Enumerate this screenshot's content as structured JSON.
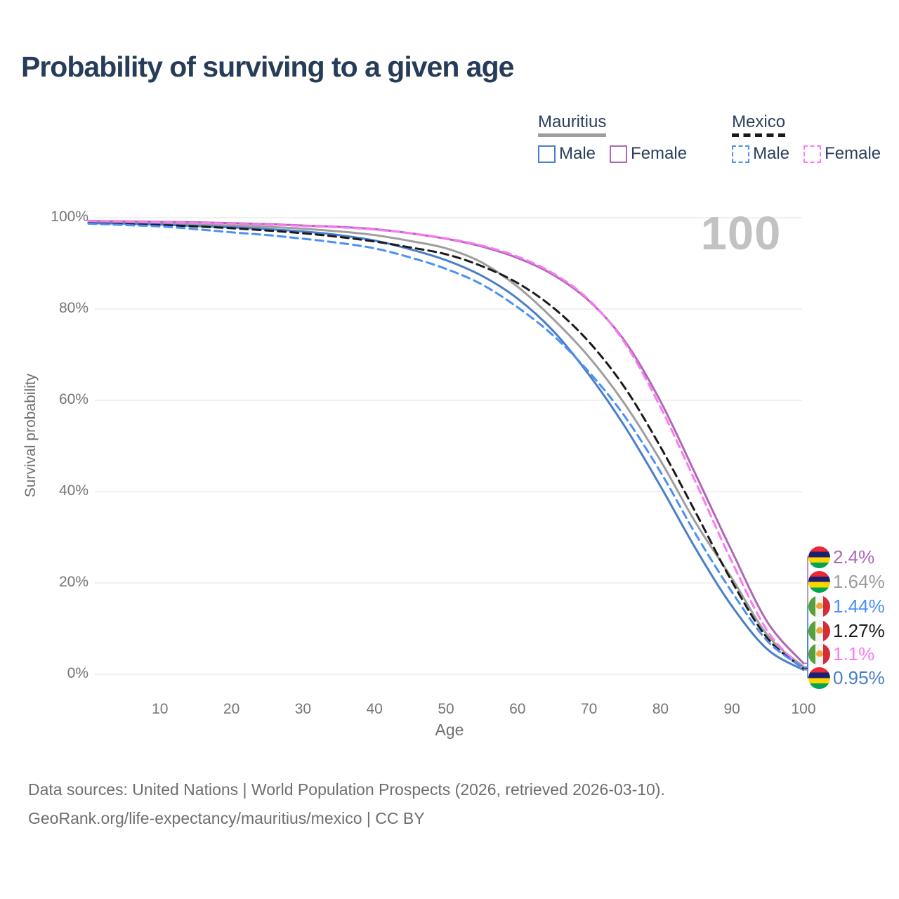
{
  "title": "Probability of surviving to a given age",
  "watermark": "100",
  "legend": {
    "groups": [
      {
        "name": "Mauritius",
        "dashed": false,
        "underline_color": "#9e9e9e",
        "items": [
          {
            "label": "Male",
            "color": "#4a7ec9",
            "dashed": false
          },
          {
            "label": "Female",
            "color": "#ae68b5",
            "dashed": false
          }
        ]
      },
      {
        "name": "Mexico",
        "dashed": true,
        "underline_color": "#1a1a1a",
        "items": [
          {
            "label": "Male",
            "color": "#4a90f7",
            "dashed": true
          },
          {
            "label": "Female",
            "color": "#fb7af2",
            "dashed": true
          }
        ]
      }
    ]
  },
  "axes": {
    "y_title": "Survival probability",
    "x_title": "Age",
    "y_ticks": [
      {
        "value": 0,
        "label": "0%"
      },
      {
        "value": 20,
        "label": "20%"
      },
      {
        "value": 40,
        "label": "40%"
      },
      {
        "value": 60,
        "label": "60%"
      },
      {
        "value": 80,
        "label": "80%"
      },
      {
        "value": 100,
        "label": "100%"
      }
    ],
    "x_ticks": [
      {
        "value": 10,
        "label": "10"
      },
      {
        "value": 20,
        "label": "20"
      },
      {
        "value": 30,
        "label": "30"
      },
      {
        "value": 40,
        "label": "40"
      },
      {
        "value": 50,
        "label": "50"
      },
      {
        "value": 60,
        "label": "60"
      },
      {
        "value": 70,
        "label": "70"
      },
      {
        "value": 80,
        "label": "80"
      },
      {
        "value": 90,
        "label": "90"
      },
      {
        "value": 100,
        "label": "100"
      }
    ]
  },
  "chart_data": {
    "type": "line",
    "title": "Probability of surviving to a given age",
    "xlabel": "Age",
    "ylabel": "Survival probability",
    "xlim": [
      0,
      100
    ],
    "ylim": [
      0,
      100
    ],
    "grid": "horizontal",
    "legend_position": "top-right",
    "series": [
      {
        "id": "mauritius-female",
        "name": "Mauritius Female",
        "country": "mauritius",
        "color": "#ae68b5",
        "dashed": false,
        "end_label": "2.4%",
        "label_row": 0,
        "points": [
          [
            0,
            99.3
          ],
          [
            5,
            99.2
          ],
          [
            10,
            99.1
          ],
          [
            15,
            99.0
          ],
          [
            20,
            98.8
          ],
          [
            25,
            98.6
          ],
          [
            30,
            98.3
          ],
          [
            35,
            98.0
          ],
          [
            40,
            97.5
          ],
          [
            45,
            96.6
          ],
          [
            50,
            95.4
          ],
          [
            55,
            93.7
          ],
          [
            60,
            91.2
          ],
          [
            65,
            87.5
          ],
          [
            70,
            81.8
          ],
          [
            75,
            73.0
          ],
          [
            80,
            59.8
          ],
          [
            85,
            43.5
          ],
          [
            90,
            26.9
          ],
          [
            95,
            11.3
          ],
          [
            100,
            2.4
          ]
        ]
      },
      {
        "id": "mauritius-all",
        "name": "Mauritius",
        "country": "mauritius",
        "color": "#9e9e9e",
        "dashed": false,
        "end_label": "1.64%",
        "label_row": 1,
        "points": [
          [
            0,
            98.9
          ],
          [
            5,
            98.8
          ],
          [
            10,
            98.7
          ],
          [
            15,
            98.5
          ],
          [
            20,
            98.3
          ],
          [
            25,
            98.0
          ],
          [
            30,
            97.6
          ],
          [
            35,
            97.0
          ],
          [
            40,
            96.2
          ],
          [
            45,
            94.9
          ],
          [
            50,
            93.3
          ],
          [
            55,
            90.2
          ],
          [
            60,
            84.9
          ],
          [
            65,
            77.8
          ],
          [
            70,
            69.5
          ],
          [
            75,
            59.2
          ],
          [
            80,
            46.8
          ],
          [
            85,
            33.0
          ],
          [
            90,
            21.0
          ],
          [
            95,
            8.5
          ],
          [
            100,
            1.64
          ]
        ]
      },
      {
        "id": "mauritius-male",
        "name": "Mauritius Male",
        "country": "mauritius",
        "color": "#4a7ec9",
        "dashed": false,
        "end_label": "0.95%",
        "label_row": 5,
        "points": [
          [
            0,
            98.8
          ],
          [
            5,
            98.7
          ],
          [
            10,
            98.5
          ],
          [
            15,
            98.2
          ],
          [
            20,
            97.9
          ],
          [
            25,
            97.5
          ],
          [
            30,
            97.0
          ],
          [
            35,
            96.2
          ],
          [
            40,
            95.0
          ],
          [
            45,
            93.1
          ],
          [
            50,
            90.7
          ],
          [
            55,
            87.3
          ],
          [
            60,
            82.3
          ],
          [
            65,
            75.2
          ],
          [
            70,
            65.6
          ],
          [
            75,
            54.3
          ],
          [
            80,
            41.2
          ],
          [
            85,
            27.3
          ],
          [
            90,
            14.9
          ],
          [
            95,
            5.4
          ],
          [
            100,
            0.95
          ]
        ]
      },
      {
        "id": "mexico-female",
        "name": "Mexico Female",
        "country": "mexico",
        "color": "#fb7af2",
        "dashed": true,
        "end_label": "1.1%",
        "label_row": 4,
        "points": [
          [
            0,
            99.2
          ],
          [
            5,
            99.1
          ],
          [
            10,
            99.0
          ],
          [
            15,
            98.9
          ],
          [
            20,
            98.7
          ],
          [
            25,
            98.5
          ],
          [
            30,
            98.2
          ],
          [
            35,
            97.9
          ],
          [
            40,
            97.4
          ],
          [
            45,
            96.6
          ],
          [
            50,
            95.5
          ],
          [
            55,
            93.9
          ],
          [
            60,
            91.5
          ],
          [
            65,
            87.8
          ],
          [
            70,
            82.0
          ],
          [
            75,
            72.6
          ],
          [
            80,
            58.5
          ],
          [
            85,
            41.8
          ],
          [
            90,
            24.6
          ],
          [
            95,
            9.4
          ],
          [
            100,
            1.1
          ]
        ]
      },
      {
        "id": "mexico-all",
        "name": "Mexico",
        "country": "mexico",
        "color": "#1a1a1a",
        "dashed": true,
        "end_label": "1.27%",
        "label_row": 3,
        "points": [
          [
            0,
            98.8
          ],
          [
            5,
            98.6
          ],
          [
            10,
            98.4
          ],
          [
            15,
            98.1
          ],
          [
            20,
            97.7
          ],
          [
            25,
            97.2
          ],
          [
            30,
            96.6
          ],
          [
            35,
            95.8
          ],
          [
            40,
            94.8
          ],
          [
            45,
            93.5
          ],
          [
            50,
            92.0
          ],
          [
            55,
            89.4
          ],
          [
            60,
            85.7
          ],
          [
            65,
            80.3
          ],
          [
            70,
            72.8
          ],
          [
            75,
            62.8
          ],
          [
            80,
            49.8
          ],
          [
            85,
            35.2
          ],
          [
            90,
            20.3
          ],
          [
            95,
            7.8
          ],
          [
            100,
            1.27
          ]
        ]
      },
      {
        "id": "mexico-male",
        "name": "Mexico Male",
        "country": "mexico",
        "color": "#4a90f7",
        "dashed": true,
        "end_label": "1.44%",
        "label_row": 2,
        "points": [
          [
            0,
            98.7
          ],
          [
            5,
            98.4
          ],
          [
            10,
            98.1
          ],
          [
            15,
            97.5
          ],
          [
            20,
            96.8
          ],
          [
            25,
            96.2
          ],
          [
            30,
            95.4
          ],
          [
            35,
            94.5
          ],
          [
            40,
            93.3
          ],
          [
            45,
            91.3
          ],
          [
            50,
            88.8
          ],
          [
            55,
            85.4
          ],
          [
            60,
            80.4
          ],
          [
            65,
            74.2
          ],
          [
            70,
            66.2
          ],
          [
            75,
            56.5
          ],
          [
            80,
            44.3
          ],
          [
            85,
            30.5
          ],
          [
            90,
            18.0
          ],
          [
            95,
            7.2
          ],
          [
            100,
            1.44
          ]
        ]
      }
    ]
  },
  "footer": {
    "line1": "Data sources: United Nations | World Population Prospects (2026, retrieved 2026-03-10).",
    "line2": "GeoRank.org/life-expectancy/mauritius/mexico | CC BY"
  }
}
